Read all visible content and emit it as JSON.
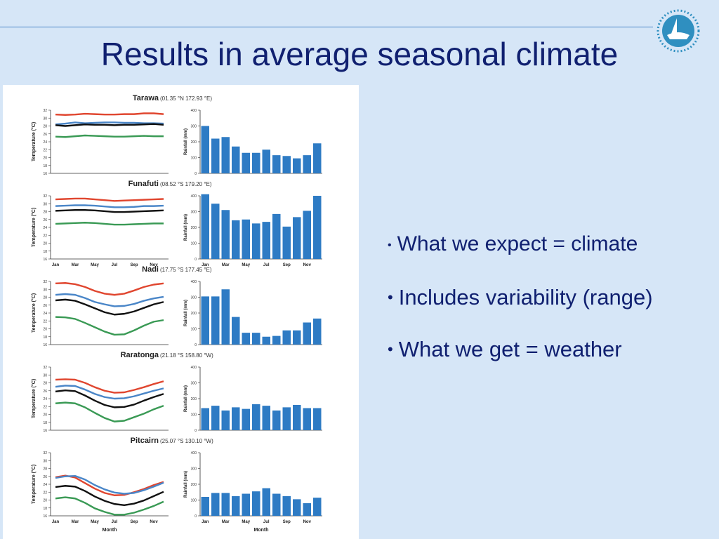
{
  "slide": {
    "title": "Results in average seasonal climate",
    "bullets": [
      "What we expect = climate",
      "Includes variability (range)",
      "What we get = weather"
    ],
    "bullet_symbol": "•"
  },
  "colors": {
    "background": "#d6e6f7",
    "title": "#102070",
    "bar": "#2e7bc4",
    "max_line": "#e0462f",
    "upper_line": "#4a86c8",
    "mean_line": "#111111",
    "min_line": "#3a9a55"
  },
  "logo_icon": "spc-sail-logo-icon",
  "chart_data": [
    {
      "type": "line",
      "station": "Tarawa",
      "coords": "(01.35 °N  172.93 °E)",
      "ylabel": "Temperature (°C)",
      "xlabel": "",
      "ylim": [
        16,
        32
      ],
      "yticks": [
        16,
        18,
        20,
        22,
        24,
        26,
        28,
        30,
        32
      ],
      "x": [
        "Jan",
        "Feb",
        "Mar",
        "Apr",
        "May",
        "Jun",
        "Jul",
        "Aug",
        "Sep",
        "Oct",
        "Nov",
        "Dec"
      ],
      "xtick_labels": [],
      "series": [
        {
          "key": "max",
          "values": [
            30.9,
            30.8,
            30.9,
            31.1,
            31.0,
            30.9,
            30.9,
            31.0,
            31.0,
            31.2,
            31.2,
            31.0
          ]
        },
        {
          "key": "upper",
          "values": [
            28.4,
            28.6,
            28.9,
            28.7,
            28.8,
            28.9,
            28.9,
            28.8,
            28.8,
            28.7,
            28.7,
            28.6
          ]
        },
        {
          "key": "mean",
          "values": [
            28.2,
            28.0,
            28.2,
            28.4,
            28.3,
            28.3,
            28.2,
            28.3,
            28.3,
            28.4,
            28.5,
            28.3
          ]
        },
        {
          "key": "min",
          "values": [
            25.3,
            25.2,
            25.4,
            25.6,
            25.5,
            25.4,
            25.3,
            25.3,
            25.4,
            25.5,
            25.4,
            25.4
          ]
        }
      ]
    },
    {
      "type": "bar",
      "station": "Tarawa",
      "ylabel": "Rainfall (mm)",
      "xlabel": "",
      "ylim": [
        0,
        400
      ],
      "yticks": [
        0,
        100,
        200,
        300,
        400
      ],
      "categories": [
        "Jan",
        "Feb",
        "Mar",
        "Apr",
        "May",
        "Jun",
        "Jul",
        "Aug",
        "Sep",
        "Oct",
        "Nov",
        "Dec"
      ],
      "xtick_labels": [],
      "values": [
        300,
        220,
        230,
        170,
        130,
        130,
        150,
        115,
        110,
        95,
        115,
        190
      ]
    },
    {
      "type": "line",
      "station": "Funafuti",
      "coords": "(08.52 °S  179.20 °E)",
      "ylabel": "Temperature (°C)",
      "xlabel": "",
      "ylim": [
        16,
        32
      ],
      "yticks": [
        16,
        18,
        20,
        22,
        24,
        26,
        28,
        30,
        32
      ],
      "x": [
        "Jan",
        "Feb",
        "Mar",
        "Apr",
        "May",
        "Jun",
        "Jul",
        "Aug",
        "Sep",
        "Oct",
        "Nov",
        "Dec"
      ],
      "xtick_labels": [
        "Jan",
        "Mar",
        "May",
        "Jul",
        "Sep",
        "Nov"
      ],
      "series": [
        {
          "key": "max",
          "values": [
            31.1,
            31.2,
            31.3,
            31.3,
            31.1,
            30.9,
            30.7,
            30.8,
            30.9,
            31.0,
            31.1,
            31.2
          ]
        },
        {
          "key": "upper",
          "values": [
            29.4,
            29.5,
            29.6,
            29.6,
            29.5,
            29.3,
            29.1,
            29.1,
            29.2,
            29.4,
            29.4,
            29.5
          ]
        },
        {
          "key": "mean",
          "values": [
            28.2,
            28.3,
            28.4,
            28.4,
            28.3,
            28.1,
            27.9,
            27.9,
            28.0,
            28.1,
            28.2,
            28.3
          ]
        },
        {
          "key": "min",
          "values": [
            24.9,
            25.0,
            25.1,
            25.2,
            25.1,
            24.9,
            24.7,
            24.7,
            24.8,
            24.9,
            25.0,
            25.0
          ]
        }
      ]
    },
    {
      "type": "bar",
      "station": "Funafuti",
      "ylabel": "Rainfall (mm)",
      "xlabel": "",
      "ylim": [
        0,
        400
      ],
      "yticks": [
        0,
        100,
        200,
        300,
        400
      ],
      "categories": [
        "Jan",
        "Feb",
        "Mar",
        "Apr",
        "May",
        "Jun",
        "Jul",
        "Aug",
        "Sep",
        "Oct",
        "Nov",
        "Dec"
      ],
      "xtick_labels": [
        "Jan",
        "Mar",
        "May",
        "Jul",
        "Sep",
        "Nov"
      ],
      "values": [
        410,
        350,
        310,
        245,
        250,
        225,
        235,
        285,
        205,
        265,
        305,
        400
      ]
    },
    {
      "type": "line",
      "station": "Nadi",
      "coords": "(17.75 °S  177.45 °E)",
      "ylabel": "Temperature (°C)",
      "xlabel": "",
      "ylim": [
        16,
        32
      ],
      "yticks": [
        16,
        18,
        20,
        22,
        24,
        26,
        28,
        30,
        32
      ],
      "x": [
        "Jan",
        "Feb",
        "Mar",
        "Apr",
        "May",
        "Jun",
        "Jul",
        "Aug",
        "Sep",
        "Oct",
        "Nov",
        "Dec"
      ],
      "xtick_labels": [],
      "series": [
        {
          "key": "max",
          "values": [
            31.5,
            31.6,
            31.3,
            30.6,
            29.6,
            28.9,
            28.6,
            28.9,
            29.7,
            30.6,
            31.2,
            31.5
          ]
        },
        {
          "key": "upper",
          "values": [
            28.6,
            28.8,
            28.6,
            27.8,
            26.8,
            26.2,
            25.7,
            25.8,
            26.3,
            27.1,
            27.7,
            28.1
          ]
        },
        {
          "key": "mean",
          "values": [
            27.2,
            27.4,
            27.1,
            26.2,
            25.2,
            24.2,
            23.6,
            23.8,
            24.4,
            25.3,
            26.2,
            26.8
          ]
        },
        {
          "key": "min",
          "values": [
            23.0,
            22.9,
            22.5,
            21.5,
            20.4,
            19.3,
            18.5,
            18.6,
            19.6,
            20.8,
            21.8,
            22.2
          ]
        }
      ]
    },
    {
      "type": "bar",
      "station": "Nadi",
      "ylabel": "Rainfall (mm)",
      "xlabel": "",
      "ylim": [
        0,
        400
      ],
      "yticks": [
        0,
        100,
        200,
        300,
        400
      ],
      "categories": [
        "Jan",
        "Feb",
        "Mar",
        "Apr",
        "May",
        "Jun",
        "Jul",
        "Aug",
        "Sep",
        "Oct",
        "Nov",
        "Dec"
      ],
      "xtick_labels": [],
      "values": [
        305,
        305,
        350,
        175,
        75,
        75,
        50,
        55,
        90,
        90,
        140,
        165
      ]
    },
    {
      "type": "line",
      "station": "Raratonga",
      "coords": "(21.18 °S  158.80 °W)",
      "ylabel": "Temperature (°C)",
      "xlabel": "",
      "ylim": [
        16,
        32
      ],
      "yticks": [
        16,
        18,
        20,
        22,
        24,
        26,
        28,
        30,
        32
      ],
      "x": [
        "Jan",
        "Feb",
        "Mar",
        "Apr",
        "May",
        "Jun",
        "Jul",
        "Aug",
        "Sep",
        "Oct",
        "Nov",
        "Dec"
      ],
      "xtick_labels": [],
      "series": [
        {
          "key": "max",
          "values": [
            28.8,
            28.9,
            28.8,
            28.0,
            26.9,
            26.0,
            25.5,
            25.6,
            26.2,
            26.9,
            27.7,
            28.4
          ]
        },
        {
          "key": "upper",
          "values": [
            27.0,
            27.3,
            27.2,
            26.3,
            25.2,
            24.4,
            24.0,
            24.1,
            24.6,
            25.3,
            26.0,
            26.6
          ]
        },
        {
          "key": "mean",
          "values": [
            25.8,
            26.1,
            25.9,
            24.8,
            23.5,
            22.4,
            21.8,
            21.9,
            22.5,
            23.5,
            24.4,
            25.2
          ]
        },
        {
          "key": "min",
          "values": [
            22.8,
            23.0,
            22.8,
            21.8,
            20.4,
            19.1,
            18.2,
            18.4,
            19.3,
            20.2,
            21.3,
            22.2
          ]
        }
      ]
    },
    {
      "type": "bar",
      "station": "Raratonga",
      "ylabel": "Rainfall (mm)",
      "xlabel": "",
      "ylim": [
        0,
        400
      ],
      "yticks": [
        0,
        100,
        200,
        300,
        400
      ],
      "categories": [
        "Jan",
        "Feb",
        "Mar",
        "Apr",
        "May",
        "Jun",
        "Jul",
        "Aug",
        "Sep",
        "Oct",
        "Nov",
        "Dec"
      ],
      "xtick_labels": [],
      "values": [
        140,
        155,
        125,
        145,
        135,
        165,
        155,
        125,
        145,
        160,
        140,
        140
      ]
    },
    {
      "type": "line",
      "station": "Pitcairn",
      "coords": "(25.07 °S  130.10 °W)",
      "ylabel": "Temperature (°C)",
      "xlabel": "Month",
      "ylim": [
        16,
        32
      ],
      "yticks": [
        16,
        18,
        20,
        22,
        24,
        26,
        28,
        30,
        32
      ],
      "x": [
        "Jan",
        "Feb",
        "Mar",
        "Apr",
        "May",
        "Jun",
        "Jul",
        "Aug",
        "Sep",
        "Oct",
        "Nov",
        "Dec"
      ],
      "xtick_labels": [
        "Jan",
        "Mar",
        "May",
        "Jul",
        "Sep",
        "Nov"
      ],
      "series": [
        {
          "key": "max",
          "values": [
            25.8,
            26.2,
            25.7,
            24.3,
            22.9,
            21.8,
            21.2,
            21.3,
            22.0,
            22.8,
            23.8,
            24.6
          ]
        },
        {
          "key": "upper",
          "values": [
            25.6,
            26.0,
            26.1,
            25.2,
            23.8,
            22.7,
            21.9,
            21.6,
            21.8,
            22.5,
            23.4,
            24.4
          ]
        },
        {
          "key": "mean",
          "values": [
            23.3,
            23.6,
            23.4,
            22.3,
            20.9,
            19.8,
            19.0,
            18.7,
            19.1,
            19.9,
            21.0,
            22.1
          ]
        },
        {
          "key": "min",
          "values": [
            20.4,
            20.7,
            20.4,
            19.3,
            17.9,
            17.0,
            16.3,
            16.3,
            16.8,
            17.6,
            18.5,
            19.6
          ]
        }
      ]
    },
    {
      "type": "bar",
      "station": "Pitcairn",
      "ylabel": "Rainfall (mm)",
      "xlabel": "Month",
      "ylim": [
        0,
        400
      ],
      "yticks": [
        0,
        100,
        200,
        300,
        400
      ],
      "categories": [
        "Jan",
        "Feb",
        "Mar",
        "Apr",
        "May",
        "Jun",
        "Jul",
        "Aug",
        "Sep",
        "Oct",
        "Nov",
        "Dec"
      ],
      "xtick_labels": [
        "Jan",
        "Mar",
        "May",
        "Jul",
        "Sep",
        "Nov"
      ],
      "values": [
        120,
        145,
        145,
        125,
        140,
        155,
        175,
        140,
        125,
        105,
        80,
        115
      ]
    }
  ]
}
